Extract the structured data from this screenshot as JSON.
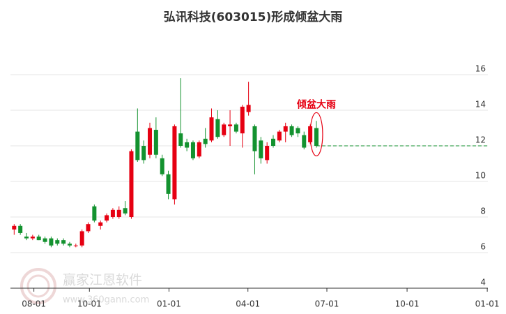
{
  "chart_data": {
    "type": "candlestick",
    "title": "弘讯科技(603015)形成倾盆大雨",
    "annotation": {
      "text": "倾盆大雨",
      "color": "#e60012"
    },
    "watermark": {
      "name": "赢家江恩软件",
      "url": "www.360gann.com"
    },
    "up_color": "#e60012",
    "down_color": "#13922f",
    "x": [
      0,
      1,
      2,
      3,
      4,
      5,
      6,
      7,
      8,
      9,
      10,
      11,
      12,
      13,
      14,
      15,
      16,
      17,
      18,
      19,
      20,
      21,
      22,
      23,
      24,
      25,
      26,
      27,
      28,
      29,
      30,
      31,
      32,
      33,
      34,
      35,
      36,
      37,
      38,
      39,
      40,
      41,
      42,
      43,
      44,
      45,
      46,
      47,
      48,
      49
    ],
    "open": [
      7.3,
      7.5,
      6.9,
      6.8,
      6.9,
      6.8,
      6.8,
      6.7,
      6.7,
      6.5,
      6.4,
      6.4,
      7.2,
      8.6,
      7.5,
      7.8,
      8.0,
      8.0,
      8.5,
      8.0,
      12.8,
      12.0,
      11.5,
      12.9,
      11.3,
      10.4,
      9.0,
      12.7,
      12.2,
      12.2,
      11.4,
      12.4,
      12.3,
      13.5,
      12.6,
      13.1,
      13.2,
      12.7,
      13.9,
      13.1,
      12.3,
      11.2,
      12.4,
      12.3,
      12.8,
      13.1,
      13.0,
      12.6,
      12.2,
      13.0
    ],
    "high": [
      7.6,
      7.6,
      7.1,
      7.0,
      7.0,
      6.9,
      6.9,
      6.8,
      6.8,
      6.6,
      6.5,
      7.3,
      7.7,
      8.7,
      7.8,
      8.2,
      8.5,
      8.6,
      8.9,
      11.8,
      14.1,
      12.3,
      13.3,
      13.6,
      11.5,
      10.6,
      13.2,
      15.8,
      12.4,
      12.3,
      12.3,
      13.0,
      14.1,
      14.0,
      13.3,
      14.0,
      13.3,
      14.3,
      15.6,
      13.2,
      12.5,
      12.2,
      12.6,
      12.9,
      13.3,
      13.2,
      13.1,
      12.8,
      13.2,
      13.4
    ],
    "low": [
      7.0,
      7.0,
      6.7,
      6.7,
      6.7,
      6.5,
      6.3,
      6.4,
      6.4,
      6.3,
      6.3,
      6.3,
      7.1,
      7.7,
      7.3,
      7.7,
      7.9,
      7.9,
      8.1,
      7.9,
      11.1,
      11.0,
      11.3,
      11.3,
      10.3,
      9.0,
      8.7,
      11.9,
      11.7,
      11.2,
      11.3,
      11.9,
      12.2,
      12.4,
      12.5,
      12.0,
      12.7,
      11.9,
      13.7,
      10.4,
      11.0,
      11.0,
      11.9,
      12.2,
      12.2,
      12.5,
      12.5,
      11.8,
      12.1,
      11.9
    ],
    "close": [
      7.5,
      7.1,
      6.8,
      6.9,
      6.7,
      6.6,
      6.4,
      6.5,
      6.5,
      6.4,
      6.4,
      7.2,
      7.6,
      7.8,
      7.7,
      8.1,
      8.4,
      8.4,
      8.2,
      11.7,
      11.2,
      11.2,
      13.0,
      11.5,
      10.4,
      9.3,
      13.1,
      12.0,
      11.9,
      11.3,
      12.2,
      12.1,
      13.6,
      12.5,
      13.2,
      13.2,
      12.8,
      14.2,
      14.3,
      11.7,
      11.3,
      12.0,
      12.0,
      12.8,
      13.1,
      12.6,
      12.7,
      11.9,
      13.1,
      12.0
    ],
    "reference_line": {
      "value": 12.0,
      "x": 49,
      "color": "#13922f"
    },
    "xlim": [
      -0.6,
      76.8
    ],
    "xticks": [
      {
        "value": 3.2,
        "label": "08-01"
      },
      {
        "value": 12.2,
        "label": "10-01"
      },
      {
        "value": 25.1,
        "label": "01-01"
      },
      {
        "value": 37.9,
        "label": "04-01"
      },
      {
        "value": 50.7,
        "label": "07-01"
      },
      {
        "value": 63.7,
        "label": "10-01"
      },
      {
        "value": 76.7,
        "label": "01-01"
      }
    ],
    "ylim": [
      4,
      16
    ],
    "yticks": [
      4,
      6,
      8,
      10,
      12,
      14,
      16
    ],
    "grid": true
  }
}
